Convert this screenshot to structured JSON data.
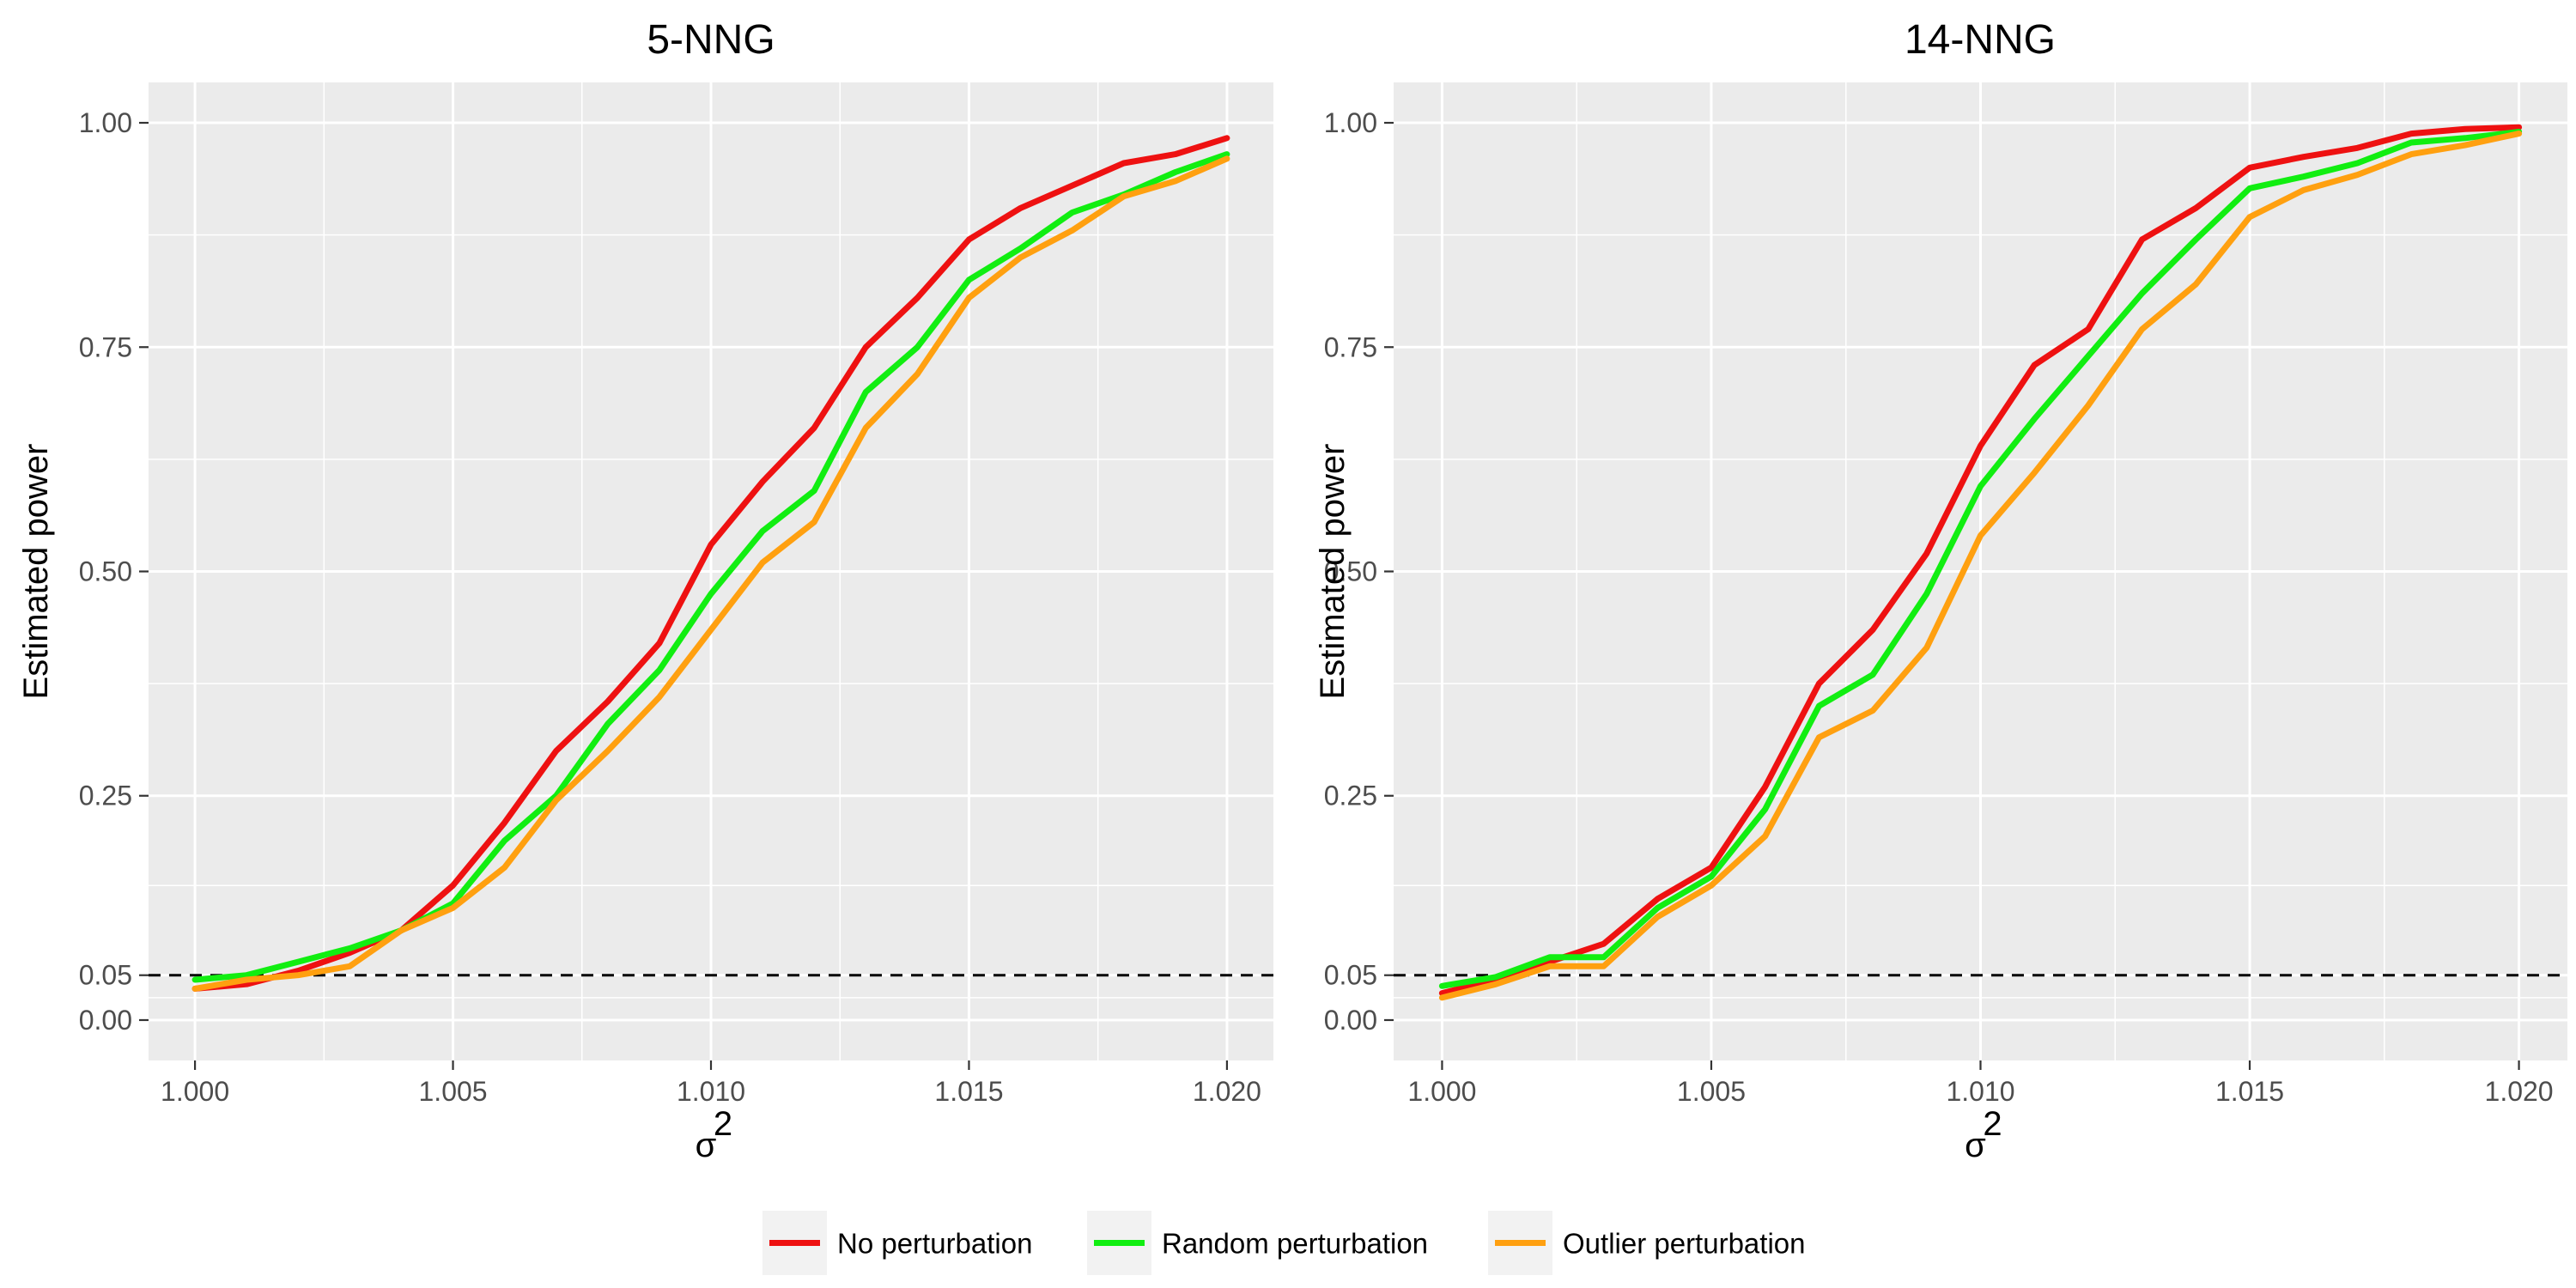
{
  "chart_data": [
    {
      "type": "line",
      "title": "5-NNG",
      "xlabel": "σ",
      "xlabel_superscript": "2",
      "ylabel": "Estimated power",
      "xlim": [
        1.0,
        1.02
      ],
      "ylim": [
        0.0,
        1.0
      ],
      "xticks": [
        1.0,
        1.005,
        1.01,
        1.015,
        1.02
      ],
      "xtick_labels": [
        "1.000",
        "1.005",
        "1.010",
        "1.015",
        "1.020"
      ],
      "yticks": [
        0.0,
        0.05,
        0.25,
        0.5,
        0.75,
        1.0
      ],
      "ytick_labels": [
        "0.00",
        "0.05",
        "0.25",
        "0.50",
        "0.75",
        "1.00"
      ],
      "reference_line": 0.05,
      "x": [
        1.0,
        1.001,
        1.002,
        1.003,
        1.004,
        1.005,
        1.006,
        1.007,
        1.008,
        1.009,
        1.01,
        1.011,
        1.012,
        1.013,
        1.014,
        1.015,
        1.016,
        1.017,
        1.018,
        1.019,
        1.02
      ],
      "series": [
        {
          "name": "No perturbation",
          "color": "#ee1111",
          "values": [
            0.035,
            0.04,
            0.055,
            0.075,
            0.1,
            0.15,
            0.22,
            0.3,
            0.355,
            0.42,
            0.53,
            0.6,
            0.66,
            0.75,
            0.805,
            0.87,
            0.905,
            0.93,
            0.955,
            0.965,
            0.983
          ]
        },
        {
          "name": "Random perturbation",
          "color": "#11ee11",
          "values": [
            0.045,
            0.05,
            0.065,
            0.08,
            0.1,
            0.13,
            0.2,
            0.25,
            0.33,
            0.39,
            0.475,
            0.545,
            0.59,
            0.7,
            0.75,
            0.825,
            0.86,
            0.9,
            0.92,
            0.945,
            0.965
          ]
        },
        {
          "name": "Outlier perturbation",
          "color": "#ffa010",
          "values": [
            0.035,
            0.045,
            0.05,
            0.06,
            0.1,
            0.125,
            0.17,
            0.245,
            0.3,
            0.36,
            0.435,
            0.51,
            0.555,
            0.66,
            0.72,
            0.805,
            0.85,
            0.88,
            0.918,
            0.935,
            0.96
          ]
        }
      ]
    },
    {
      "type": "line",
      "title": "14-NNG",
      "xlabel": "σ",
      "xlabel_superscript": "2",
      "ylabel": "Estimated power",
      "xlim": [
        1.0,
        1.02
      ],
      "ylim": [
        0.0,
        1.0
      ],
      "xticks": [
        1.0,
        1.005,
        1.01,
        1.015,
        1.02
      ],
      "xtick_labels": [
        "1.000",
        "1.005",
        "1.010",
        "1.015",
        "1.020"
      ],
      "yticks": [
        0.0,
        0.05,
        0.25,
        0.5,
        0.75,
        1.0
      ],
      "ytick_labels": [
        "0.00",
        "0.05",
        "0.25",
        "0.50",
        "0.75",
        "1.00"
      ],
      "reference_line": 0.05,
      "x": [
        1.0,
        1.001,
        1.002,
        1.003,
        1.004,
        1.005,
        1.006,
        1.007,
        1.008,
        1.009,
        1.01,
        1.011,
        1.012,
        1.013,
        1.014,
        1.015,
        1.016,
        1.017,
        1.018,
        1.019,
        1.02
      ],
      "series": [
        {
          "name": "No perturbation",
          "color": "#ee1111",
          "values": [
            0.03,
            0.045,
            0.065,
            0.085,
            0.135,
            0.17,
            0.26,
            0.375,
            0.435,
            0.52,
            0.64,
            0.73,
            0.77,
            0.87,
            0.905,
            0.95,
            0.962,
            0.972,
            0.988,
            0.993,
            0.995
          ]
        },
        {
          "name": "Random perturbation",
          "color": "#11ee11",
          "values": [
            0.038,
            0.048,
            0.07,
            0.07,
            0.125,
            0.16,
            0.235,
            0.35,
            0.385,
            0.475,
            0.595,
            0.67,
            0.74,
            0.81,
            0.87,
            0.927,
            0.94,
            0.955,
            0.978,
            0.983,
            0.99
          ]
        },
        {
          "name": "Outlier perturbation",
          "color": "#ffa010",
          "values": [
            0.025,
            0.04,
            0.06,
            0.06,
            0.115,
            0.15,
            0.205,
            0.315,
            0.345,
            0.415,
            0.54,
            0.61,
            0.685,
            0.77,
            0.82,
            0.895,
            0.925,
            0.942,
            0.965,
            0.975,
            0.988
          ]
        }
      ]
    }
  ],
  "legend": {
    "position": "bottom",
    "items": [
      {
        "label": "No perturbation",
        "color": "#ee1111"
      },
      {
        "label": "Random perturbation",
        "color": "#11ee11"
      },
      {
        "label": "Outlier perturbation",
        "color": "#ffa010"
      }
    ]
  }
}
